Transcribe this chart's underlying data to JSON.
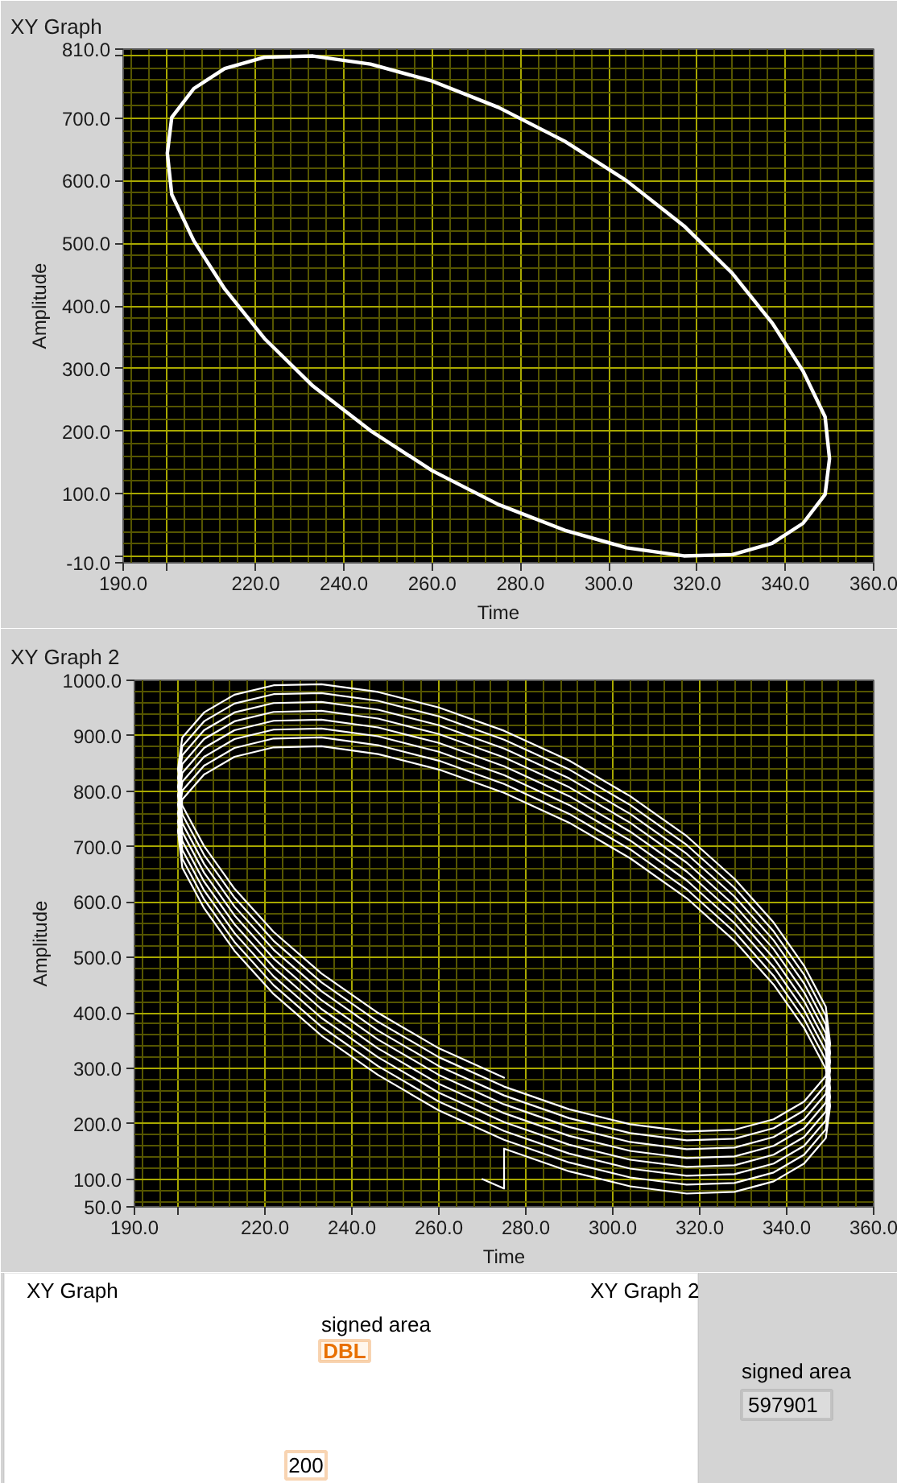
{
  "chart_data": [
    {
      "type": "line",
      "title": "XY Graph",
      "xlabel": "Time",
      "ylabel": "Amplitude",
      "xlim": [
        190,
        360
      ],
      "ylim": [
        -10,
        810
      ],
      "xticks": [
        {
          "value": 190,
          "label": "190.0"
        },
        {
          "value": 192,
          "label": null
        },
        {
          "value": 196,
          "label": null
        },
        {
          "value": 200,
          "label": null
        },
        {
          "value": 204,
          "label": null
        },
        {
          "value": 208,
          "label": null
        },
        {
          "value": 212,
          "label": null
        },
        {
          "value": 216,
          "label": null
        },
        {
          "value": 220,
          "label": "220.0"
        },
        {
          "value": 224,
          "label": null
        },
        {
          "value": 228,
          "label": null
        },
        {
          "value": 232,
          "label": null
        },
        {
          "value": 236,
          "label": null
        },
        {
          "value": 240,
          "label": "240.0"
        },
        {
          "value": 244,
          "label": null
        },
        {
          "value": 248,
          "label": null
        },
        {
          "value": 252,
          "label": null
        },
        {
          "value": 256,
          "label": null
        },
        {
          "value": 260,
          "label": "260.0"
        },
        {
          "value": 264,
          "label": null
        },
        {
          "value": 268,
          "label": null
        },
        {
          "value": 272,
          "label": null
        },
        {
          "value": 276,
          "label": null
        },
        {
          "value": 280,
          "label": "280.0"
        },
        {
          "value": 284,
          "label": null
        },
        {
          "value": 288,
          "label": null
        },
        {
          "value": 292,
          "label": null
        },
        {
          "value": 296,
          "label": null
        },
        {
          "value": 300,
          "label": "300.0"
        },
        {
          "value": 304,
          "label": null
        },
        {
          "value": 308,
          "label": null
        },
        {
          "value": 312,
          "label": null
        },
        {
          "value": 316,
          "label": null
        },
        {
          "value": 320,
          "label": "320.0"
        },
        {
          "value": 324,
          "label": null
        },
        {
          "value": 328,
          "label": null
        },
        {
          "value": 332,
          "label": null
        },
        {
          "value": 336,
          "label": null
        },
        {
          "value": 340,
          "label": "340.0"
        },
        {
          "value": 344,
          "label": null
        },
        {
          "value": 348,
          "label": null
        },
        {
          "value": 352,
          "label": null
        },
        {
          "value": 356,
          "label": null
        },
        {
          "value": 360,
          "label": "360.0"
        }
      ],
      "yticks": [
        {
          "value": -10,
          "label": "-10.0"
        },
        {
          "value": 0,
          "label": null
        },
        {
          "value": 20,
          "label": null
        },
        {
          "value": 40,
          "label": null
        },
        {
          "value": 60,
          "label": null
        },
        {
          "value": 80,
          "label": null
        },
        {
          "value": 100,
          "label": "100.0"
        },
        {
          "value": 120,
          "label": null
        },
        {
          "value": 140,
          "label": null
        },
        {
          "value": 160,
          "label": null
        },
        {
          "value": 180,
          "label": null
        },
        {
          "value": 200,
          "label": "200.0"
        },
        {
          "value": 220,
          "label": null
        },
        {
          "value": 240,
          "label": null
        },
        {
          "value": 260,
          "label": null
        },
        {
          "value": 280,
          "label": null
        },
        {
          "value": 300,
          "label": "300.0"
        },
        {
          "value": 320,
          "label": null
        },
        {
          "value": 340,
          "label": null
        },
        {
          "value": 360,
          "label": null
        },
        {
          "value": 380,
          "label": null
        },
        {
          "value": 400,
          "label": "400.0"
        },
        {
          "value": 420,
          "label": null
        },
        {
          "value": 440,
          "label": null
        },
        {
          "value": 460,
          "label": null
        },
        {
          "value": 480,
          "label": null
        },
        {
          "value": 500,
          "label": "500.0"
        },
        {
          "value": 520,
          "label": null
        },
        {
          "value": 540,
          "label": null
        },
        {
          "value": 560,
          "label": null
        },
        {
          "value": 580,
          "label": null
        },
        {
          "value": 600,
          "label": "600.0"
        },
        {
          "value": 620,
          "label": null
        },
        {
          "value": 640,
          "label": null
        },
        {
          "value": 660,
          "label": null
        },
        {
          "value": 680,
          "label": null
        },
        {
          "value": 700,
          "label": "700.0"
        },
        {
          "value": 720,
          "label": null
        },
        {
          "value": 740,
          "label": null
        },
        {
          "value": 760,
          "label": null
        },
        {
          "value": 780,
          "label": null
        },
        {
          "value": 800,
          "label": null
        },
        {
          "value": 810,
          "label": "810.0"
        }
      ],
      "grid": true,
      "series": [
        {
          "color": "#ffffff",
          "x": [
            275,
            290,
            304,
            317,
            328,
            337,
            344,
            349,
            350,
            349,
            344,
            337,
            328,
            317,
            304,
            290,
            275,
            260,
            246,
            233,
            222,
            213,
            206,
            201,
            200,
            201,
            206,
            213,
            222,
            233,
            246,
            260,
            275,
            290
          ],
          "values": [
            83,
            42,
            14,
            1,
            3,
            21,
            53,
            99,
            156,
            223,
            296,
            373,
            452,
            528,
            600,
            663,
            717,
            759,
            786,
            799,
            797,
            779,
            747,
            701,
            644,
            578,
            504,
            427,
            348,
            272,
            201,
            137,
            83,
            42
          ]
        }
      ]
    },
    {
      "type": "line",
      "title": "XY Graph 2",
      "xlabel": "Time",
      "ylabel": "Amplitude",
      "xlim": [
        190,
        360
      ],
      "ylim": [
        50,
        1000
      ],
      "xticks": [
        {
          "value": 190,
          "label": "190.0"
        },
        {
          "value": 192,
          "label": null
        },
        {
          "value": 196,
          "label": null
        },
        {
          "value": 200,
          "label": null
        },
        {
          "value": 204,
          "label": null
        },
        {
          "value": 208,
          "label": null
        },
        {
          "value": 212,
          "label": null
        },
        {
          "value": 216,
          "label": null
        },
        {
          "value": 220,
          "label": "220.0"
        },
        {
          "value": 224,
          "label": null
        },
        {
          "value": 228,
          "label": null
        },
        {
          "value": 232,
          "label": null
        },
        {
          "value": 236,
          "label": null
        },
        {
          "value": 240,
          "label": "240.0"
        },
        {
          "value": 244,
          "label": null
        },
        {
          "value": 248,
          "label": null
        },
        {
          "value": 252,
          "label": null
        },
        {
          "value": 256,
          "label": null
        },
        {
          "value": 260,
          "label": "260.0"
        },
        {
          "value": 264,
          "label": null
        },
        {
          "value": 268,
          "label": null
        },
        {
          "value": 272,
          "label": null
        },
        {
          "value": 276,
          "label": null
        },
        {
          "value": 280,
          "label": "280.0"
        },
        {
          "value": 284,
          "label": null
        },
        {
          "value": 288,
          "label": null
        },
        {
          "value": 292,
          "label": null
        },
        {
          "value": 296,
          "label": null
        },
        {
          "value": 300,
          "label": "300.0"
        },
        {
          "value": 304,
          "label": null
        },
        {
          "value": 308,
          "label": null
        },
        {
          "value": 312,
          "label": null
        },
        {
          "value": 316,
          "label": null
        },
        {
          "value": 320,
          "label": "320.0"
        },
        {
          "value": 324,
          "label": null
        },
        {
          "value": 328,
          "label": null
        },
        {
          "value": 332,
          "label": null
        },
        {
          "value": 336,
          "label": null
        },
        {
          "value": 340,
          "label": "340.0"
        },
        {
          "value": 344,
          "label": null
        },
        {
          "value": 348,
          "label": null
        },
        {
          "value": 352,
          "label": null
        },
        {
          "value": 356,
          "label": null
        },
        {
          "value": 360,
          "label": "360.0"
        }
      ],
      "yticks": [
        {
          "value": 50,
          "label": "50.0"
        },
        {
          "value": 60,
          "label": null
        },
        {
          "value": 80,
          "label": null
        },
        {
          "value": 100,
          "label": "100.0"
        },
        {
          "value": 120,
          "label": null
        },
        {
          "value": 140,
          "label": null
        },
        {
          "value": 160,
          "label": null
        },
        {
          "value": 180,
          "label": null
        },
        {
          "value": 200,
          "label": "200.0"
        },
        {
          "value": 220,
          "label": null
        },
        {
          "value": 240,
          "label": null
        },
        {
          "value": 260,
          "label": null
        },
        {
          "value": 280,
          "label": null
        },
        {
          "value": 300,
          "label": "300.0"
        },
        {
          "value": 320,
          "label": null
        },
        {
          "value": 340,
          "label": null
        },
        {
          "value": 360,
          "label": null
        },
        {
          "value": 380,
          "label": null
        },
        {
          "value": 400,
          "label": "400.0"
        },
        {
          "value": 420,
          "label": null
        },
        {
          "value": 440,
          "label": null
        },
        {
          "value": 460,
          "label": null
        },
        {
          "value": 480,
          "label": null
        },
        {
          "value": 500,
          "label": "500.0"
        },
        {
          "value": 520,
          "label": null
        },
        {
          "value": 540,
          "label": null
        },
        {
          "value": 560,
          "label": null
        },
        {
          "value": 580,
          "label": null
        },
        {
          "value": 600,
          "label": "600.0"
        },
        {
          "value": 620,
          "label": null
        },
        {
          "value": 640,
          "label": null
        },
        {
          "value": 660,
          "label": null
        },
        {
          "value": 680,
          "label": null
        },
        {
          "value": 700,
          "label": "700.0"
        },
        {
          "value": 720,
          "label": null
        },
        {
          "value": 740,
          "label": null
        },
        {
          "value": 760,
          "label": null
        },
        {
          "value": 780,
          "label": null
        },
        {
          "value": 800,
          "label": "800.0"
        },
        {
          "value": 820,
          "label": null
        },
        {
          "value": 840,
          "label": null
        },
        {
          "value": 860,
          "label": null
        },
        {
          "value": 880,
          "label": null
        },
        {
          "value": 900,
          "label": "900.0"
        },
        {
          "value": 920,
          "label": null
        },
        {
          "value": 940,
          "label": null
        },
        {
          "value": 960,
          "label": null
        },
        {
          "value": 980,
          "label": null
        },
        {
          "value": 1000,
          "label": "1000.0"
        }
      ],
      "grid": true,
      "series": [
        {
          "color": "#ffffff",
          "x": [
            270,
            275,
            275,
            290,
            304,
            317,
            328,
            337,
            344,
            349,
            350,
            349,
            344,
            337,
            328,
            317,
            304,
            290,
            275,
            260,
            246,
            233,
            222,
            213,
            206,
            201,
            200,
            201,
            206,
            213,
            222,
            233,
            246,
            260,
            275,
            290,
            304,
            317,
            328,
            337,
            344,
            349,
            350,
            349,
            344,
            337,
            328,
            317,
            304,
            290,
            275,
            260,
            246,
            233,
            222,
            213,
            206,
            201,
            200,
            201,
            206,
            213,
            222,
            233,
            246,
            260,
            275,
            290,
            304,
            317,
            328,
            337,
            344,
            349,
            350,
            349,
            344,
            337,
            328,
            317,
            304,
            290,
            275,
            260,
            246,
            233,
            222,
            213,
            206,
            201,
            200,
            201,
            206,
            213,
            222,
            233,
            246,
            260,
            275,
            290,
            304,
            317,
            328,
            337,
            344,
            349,
            350,
            349,
            344,
            337,
            328,
            317,
            304,
            290,
            275,
            260,
            246,
            233,
            222,
            213,
            206,
            201,
            200,
            201,
            206,
            213,
            222,
            233,
            246,
            260,
            275,
            290,
            304,
            317,
            328,
            337,
            344,
            349,
            350,
            349,
            344,
            337,
            328,
            317,
            304,
            290,
            275,
            260,
            246,
            233,
            222,
            213,
            206,
            201,
            200,
            201,
            206,
            213,
            222,
            233,
            246,
            260,
            275,
            290,
            304,
            317,
            328,
            337,
            344,
            349,
            350,
            349,
            344,
            337,
            328,
            317,
            304,
            290,
            275,
            260,
            246,
            233,
            222,
            213,
            206,
            201,
            200,
            201,
            206,
            213,
            222,
            233,
            246,
            260,
            275,
            290,
            304,
            317,
            328,
            337,
            344,
            349,
            350,
            349,
            344,
            337,
            328,
            317,
            304,
            290,
            275,
            260,
            246,
            233,
            222,
            213,
            206,
            201,
            200,
            201,
            206,
            213,
            222,
            233,
            246,
            260,
            275,
            290,
            304,
            317,
            328,
            337,
            344,
            349,
            350,
            349,
            344,
            337,
            328,
            317,
            304,
            290,
            275,
            260,
            246,
            233,
            222,
            213,
            206,
            201,
            200,
            201,
            206,
            213,
            222,
            233,
            246,
            260,
            275
          ],
          "values": [
            100,
            83,
            155,
            114,
            87,
            74,
            77,
            96,
            128,
            174,
            232,
            299,
            373,
            451,
            530,
            607,
            679,
            743,
            797,
            839,
            867,
            881,
            879,
            862,
            830,
            785,
            728,
            662,
            589,
            512,
            434,
            359,
            288,
            224,
            171,
            130,
            103,
            90,
            93,
            112,
            144,
            190,
            248,
            315,
            389,
            467,
            546,
            623,
            695,
            759,
            813,
            855,
            883,
            897,
            895,
            878,
            846,
            801,
            744,
            678,
            605,
            528,
            450,
            375,
            304,
            240,
            187,
            146,
            119,
            106,
            109,
            128,
            160,
            206,
            264,
            331,
            405,
            483,
            562,
            639,
            711,
            775,
            829,
            871,
            899,
            913,
            911,
            894,
            862,
            817,
            760,
            694,
            621,
            544,
            466,
            391,
            320,
            256,
            203,
            162,
            135,
            122,
            125,
            144,
            176,
            222,
            280,
            347,
            421,
            499,
            578,
            655,
            727,
            791,
            845,
            887,
            915,
            929,
            927,
            910,
            878,
            833,
            776,
            710,
            637,
            560,
            482,
            407,
            336,
            272,
            219,
            178,
            151,
            138,
            141,
            160,
            192,
            238,
            296,
            363,
            437,
            515,
            594,
            671,
            743,
            807,
            861,
            903,
            931,
            945,
            943,
            926,
            894,
            849,
            792,
            726,
            653,
            576,
            498,
            423,
            352,
            288,
            235,
            194,
            167,
            154,
            157,
            176,
            208,
            254,
            312,
            379,
            453,
            531,
            610,
            687,
            759,
            823,
            877,
            919,
            947,
            961,
            959,
            942,
            910,
            865,
            808,
            742,
            669,
            592,
            514,
            439,
            368,
            304,
            251,
            210,
            183,
            170,
            173,
            192,
            224,
            270,
            328,
            395,
            469,
            547,
            626,
            703,
            775,
            839,
            893,
            935,
            963,
            977,
            975,
            958,
            926,
            881,
            824,
            758,
            685,
            608,
            530,
            455,
            384,
            320,
            267,
            226,
            199,
            186,
            189,
            208,
            240,
            286,
            344,
            411,
            485,
            563,
            642,
            719,
            791,
            855,
            909,
            951,
            979,
            993,
            991,
            974,
            942,
            897,
            840,
            774,
            701,
            624,
            546,
            471,
            400,
            336,
            283
          ]
        }
      ]
    },
    {
      "type": "other",
      "annotations": [
        "XY Graph",
        "XY Graph 2",
        "signed area",
        "DBL",
        "200",
        "signed area",
        "597901"
      ]
    }
  ]
}
